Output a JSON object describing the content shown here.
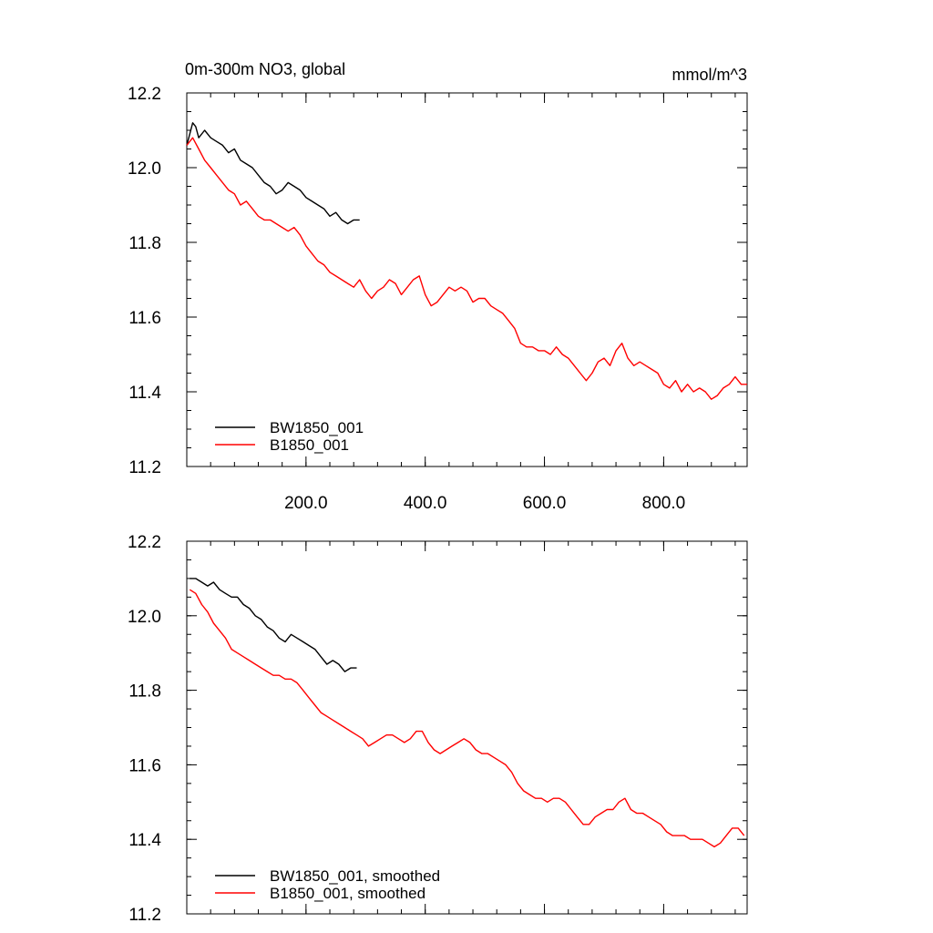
{
  "chart_data": [
    {
      "type": "line",
      "title": "0m-300m NO3, global",
      "units": "mmol/m^3",
      "xlabel": "",
      "ylabel": "",
      "xlim": [
        0,
        940
      ],
      "ylim": [
        11.2,
        12.2
      ],
      "xticks": [
        200,
        400,
        600,
        800
      ],
      "xtick_labels": [
        "200.0",
        "400.0",
        "600.0",
        "800.0"
      ],
      "yticks": [
        11.2,
        11.4,
        11.6,
        11.8,
        12.0,
        12.2
      ],
      "ytick_labels": [
        "11.2",
        "11.4",
        "11.6",
        "11.8",
        "12.0",
        "12.2"
      ],
      "legend": "bottom-left",
      "grid": false,
      "series": [
        {
          "name": "BW1850_001",
          "color": "#000000",
          "x": [
            0,
            5,
            10,
            15,
            20,
            30,
            40,
            50,
            60,
            70,
            80,
            90,
            100,
            110,
            120,
            130,
            140,
            150,
            160,
            170,
            180,
            190,
            200,
            210,
            220,
            230,
            240,
            250,
            260,
            270,
            280,
            290
          ],
          "y": [
            12.06,
            12.09,
            12.12,
            12.11,
            12.08,
            12.1,
            12.08,
            12.07,
            12.06,
            12.04,
            12.05,
            12.02,
            12.01,
            12.0,
            11.98,
            11.96,
            11.95,
            11.93,
            11.94,
            11.96,
            11.95,
            11.94,
            11.92,
            11.91,
            11.9,
            11.89,
            11.87,
            11.88,
            11.86,
            11.85,
            11.86,
            11.86
          ]
        },
        {
          "name": "B1850_001",
          "color": "#ff0000",
          "x": [
            0,
            10,
            20,
            30,
            40,
            50,
            60,
            70,
            80,
            90,
            100,
            110,
            120,
            130,
            140,
            150,
            160,
            170,
            180,
            190,
            200,
            210,
            220,
            230,
            240,
            250,
            260,
            270,
            280,
            290,
            300,
            310,
            320,
            330,
            340,
            350,
            360,
            370,
            380,
            390,
            400,
            410,
            420,
            430,
            440,
            450,
            460,
            470,
            480,
            490,
            500,
            510,
            520,
            530,
            540,
            550,
            560,
            570,
            580,
            590,
            600,
            610,
            620,
            630,
            640,
            650,
            660,
            670,
            680,
            690,
            700,
            710,
            720,
            730,
            740,
            750,
            760,
            770,
            780,
            790,
            800,
            810,
            820,
            830,
            840,
            850,
            860,
            870,
            880,
            890,
            900,
            910,
            920,
            930,
            940
          ],
          "y": [
            12.06,
            12.08,
            12.05,
            12.02,
            12.0,
            11.98,
            11.96,
            11.94,
            11.93,
            11.9,
            11.91,
            11.89,
            11.87,
            11.86,
            11.86,
            11.85,
            11.84,
            11.83,
            11.84,
            11.82,
            11.79,
            11.77,
            11.75,
            11.74,
            11.72,
            11.71,
            11.7,
            11.69,
            11.68,
            11.7,
            11.67,
            11.65,
            11.67,
            11.68,
            11.7,
            11.69,
            11.66,
            11.68,
            11.7,
            11.71,
            11.66,
            11.63,
            11.64,
            11.66,
            11.68,
            11.67,
            11.68,
            11.67,
            11.64,
            11.65,
            11.65,
            11.63,
            11.62,
            11.61,
            11.59,
            11.57,
            11.53,
            11.52,
            11.52,
            11.51,
            11.51,
            11.5,
            11.52,
            11.5,
            11.49,
            11.47,
            11.45,
            11.43,
            11.45,
            11.48,
            11.49,
            11.47,
            11.51,
            11.53,
            11.49,
            11.47,
            11.48,
            11.47,
            11.46,
            11.45,
            11.42,
            11.41,
            11.43,
            11.4,
            11.42,
            11.4,
            11.41,
            11.4,
            11.38,
            11.39,
            11.41,
            11.42,
            11.44,
            11.42,
            11.42
          ]
        }
      ]
    },
    {
      "type": "line",
      "title": "",
      "xlabel": "",
      "ylabel": "",
      "xlim": [
        0,
        940
      ],
      "ylim": [
        11.2,
        12.2
      ],
      "xticks": [
        200,
        400,
        600,
        800
      ],
      "yticks": [
        11.2,
        11.4,
        11.6,
        11.8,
        12.0,
        12.2
      ],
      "ytick_labels": [
        "11.2",
        "11.4",
        "11.6",
        "11.8",
        "12.0",
        "12.2"
      ],
      "legend": "bottom-left",
      "grid": false,
      "series": [
        {
          "name": "BW1850_001, smoothed",
          "color": "#000000",
          "x": [
            5,
            15,
            25,
            35,
            45,
            55,
            65,
            75,
            85,
            95,
            105,
            115,
            125,
            135,
            145,
            155,
            165,
            175,
            185,
            195,
            205,
            215,
            225,
            235,
            245,
            255,
            265,
            275,
            285
          ],
          "y": [
            12.1,
            12.1,
            12.09,
            12.08,
            12.09,
            12.07,
            12.06,
            12.05,
            12.05,
            12.03,
            12.02,
            12.0,
            11.99,
            11.97,
            11.96,
            11.94,
            11.93,
            11.95,
            11.94,
            11.93,
            11.92,
            11.91,
            11.89,
            11.87,
            11.88,
            11.87,
            11.85,
            11.86,
            11.86
          ]
        },
        {
          "name": "B1850_001, smoothed",
          "color": "#ff0000",
          "x": [
            5,
            15,
            25,
            35,
            45,
            55,
            65,
            75,
            85,
            95,
            105,
            115,
            125,
            135,
            145,
            155,
            165,
            175,
            185,
            195,
            205,
            215,
            225,
            235,
            245,
            255,
            265,
            275,
            285,
            295,
            305,
            315,
            325,
            335,
            345,
            355,
            365,
            375,
            385,
            395,
            405,
            415,
            425,
            435,
            445,
            455,
            465,
            475,
            485,
            495,
            505,
            515,
            525,
            535,
            545,
            555,
            565,
            575,
            585,
            595,
            605,
            615,
            625,
            635,
            645,
            655,
            665,
            675,
            685,
            695,
            705,
            715,
            725,
            735,
            745,
            755,
            765,
            775,
            785,
            795,
            805,
            815,
            825,
            835,
            845,
            855,
            865,
            875,
            885,
            895,
            905,
            915,
            925,
            935
          ],
          "y": [
            12.07,
            12.06,
            12.03,
            12.01,
            11.98,
            11.96,
            11.94,
            11.91,
            11.9,
            11.89,
            11.88,
            11.87,
            11.86,
            11.85,
            11.84,
            11.84,
            11.83,
            11.83,
            11.82,
            11.8,
            11.78,
            11.76,
            11.74,
            11.73,
            11.72,
            11.71,
            11.7,
            11.69,
            11.68,
            11.67,
            11.65,
            11.66,
            11.67,
            11.68,
            11.68,
            11.67,
            11.66,
            11.67,
            11.69,
            11.69,
            11.66,
            11.64,
            11.63,
            11.64,
            11.65,
            11.66,
            11.67,
            11.66,
            11.64,
            11.63,
            11.63,
            11.62,
            11.61,
            11.6,
            11.58,
            11.55,
            11.53,
            11.52,
            11.51,
            11.51,
            11.5,
            11.51,
            11.51,
            11.5,
            11.48,
            11.46,
            11.44,
            11.44,
            11.46,
            11.47,
            11.48,
            11.48,
            11.5,
            11.51,
            11.48,
            11.47,
            11.47,
            11.46,
            11.45,
            11.44,
            11.42,
            11.41,
            11.41,
            11.41,
            11.4,
            11.4,
            11.4,
            11.39,
            11.38,
            11.39,
            11.41,
            11.43,
            11.43,
            11.41
          ]
        }
      ]
    }
  ]
}
